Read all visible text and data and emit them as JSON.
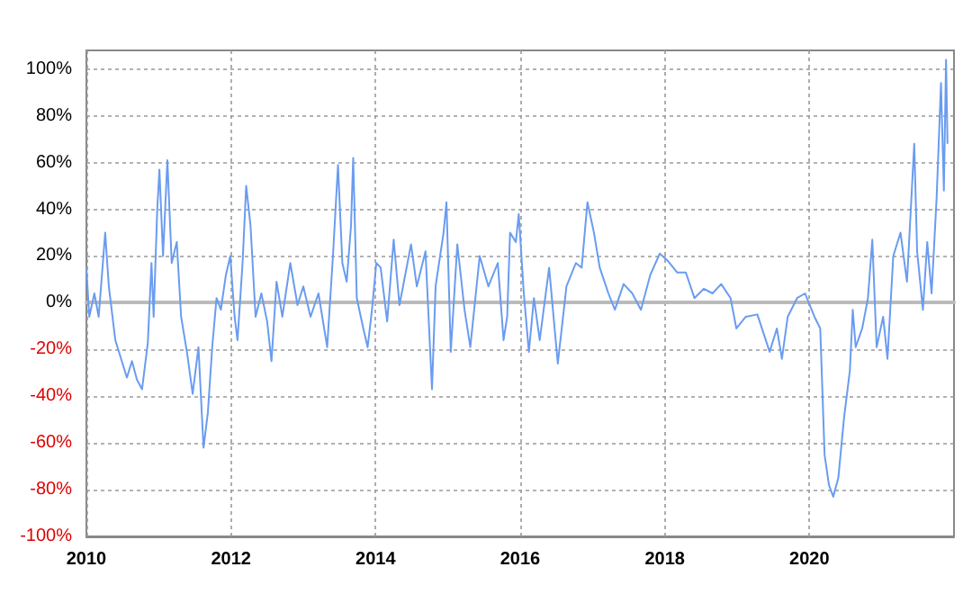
{
  "chart_data": {
    "type": "line",
    "xlim": [
      2010,
      2022
    ],
    "xticks": [
      2010,
      2012,
      2014,
      2016,
      2018,
      2020
    ],
    "ylim": [
      -100,
      108
    ],
    "yticks": [
      {
        "value": -100,
        "label": "-100%"
      },
      {
        "value": -80,
        "label": "-80%"
      },
      {
        "value": -60,
        "label": "-60%"
      },
      {
        "value": -40,
        "label": "-40%"
      },
      {
        "value": -20,
        "label": "-20%"
      },
      {
        "value": 0,
        "label": "0%"
      },
      {
        "value": 20,
        "label": "20%"
      },
      {
        "value": 40,
        "label": "40%"
      },
      {
        "value": 60,
        "label": "60%"
      },
      {
        "value": 80,
        "label": "80%"
      },
      {
        "value": 100,
        "label": "100%"
      }
    ],
    "grid": true,
    "marker": "none",
    "line_style": "solid",
    "series": [
      {
        "color": "#6a9cf0",
        "x": [
          2010,
          2010.04,
          2010.11,
          2010.17,
          2010.26,
          2010.31,
          2010.4,
          2010.48,
          2010.56,
          2010.63,
          2010.7,
          2010.77,
          2010.85,
          2010.9,
          2010.93,
          2010.98,
          2011.01,
          2011.06,
          2011.12,
          2011.18,
          2011.25,
          2011.31,
          2011.39,
          2011.47,
          2011.55,
          2011.62,
          2011.68,
          2011.74,
          2011.8,
          2011.86,
          2011.93,
          2011.99,
          2012.05,
          2012.09,
          2012.16,
          2012.21,
          2012.27,
          2012.34,
          2012.42,
          2012.5,
          2012.56,
          2012.63,
          2012.71,
          2012.82,
          2012.92,
          2013,
          2013.1,
          2013.21,
          2013.33,
          2013.41,
          2013.48,
          2013.54,
          2013.6,
          2013.66,
          2013.69,
          2013.74,
          2013.83,
          2013.89,
          2013.95,
          2014.01,
          2014.07,
          2014.16,
          2014.25,
          2014.33,
          2014.49,
          2014.57,
          2014.69,
          2014.78,
          2014.83,
          2014.94,
          2014.98,
          2015.04,
          2015.13,
          2015.23,
          2015.31,
          2015.44,
          2015.56,
          2015.69,
          2015.77,
          2015.82,
          2015.86,
          2015.94,
          2015.98,
          2016.05,
          2016.12,
          2016.19,
          2016.27,
          2016.4,
          2016.52,
          2016.64,
          2016.77,
          2016.85,
          2016.93,
          2017.02,
          2017.1,
          2017.22,
          2017.31,
          2017.43,
          2017.55,
          2017.67,
          2017.8,
          2017.93,
          2018.04,
          2018.17,
          2018.29,
          2018.41,
          2018.54,
          2018.66,
          2018.78,
          2018.91,
          2018.99,
          2019.12,
          2019.28,
          2019.45,
          2019.55,
          2019.62,
          2019.7,
          2019.83,
          2019.94,
          2020.07,
          2020.15,
          2020.21,
          2020.27,
          2020.33,
          2020.4,
          2020.48,
          2020.56,
          2020.6,
          2020.64,
          2020.73,
          2020.81,
          2020.87,
          2020.93,
          2021.02,
          2021.08,
          2021.16,
          2021.26,
          2021.35,
          2021.45,
          2021.49,
          2021.57,
          2021.63,
          2021.69,
          2021.76,
          2021.82,
          2021.86,
          2021.89,
          2021.91
        ],
        "values": [
          15,
          -6,
          4,
          -6,
          30,
          7,
          -16,
          -24,
          -32,
          -25,
          -33,
          -37,
          -17,
          17,
          -6,
          40,
          57,
          20,
          61,
          17,
          26,
          -6,
          -21,
          -39,
          -19,
          -62,
          -47,
          -19,
          2,
          -3,
          12,
          20,
          -6,
          -16,
          17,
          50,
          33,
          -6,
          4,
          -8,
          -25,
          9,
          -6,
          17,
          -1,
          7,
          -6,
          4,
          -19,
          20,
          59,
          17,
          9,
          33,
          62,
          2,
          -11,
          -19,
          -3,
          17,
          15,
          -8,
          27,
          -1,
          25,
          7,
          22,
          -37,
          7,
          30,
          43,
          -21,
          25,
          -3,
          -19,
          20,
          7,
          17,
          -16,
          -6,
          30,
          26,
          38,
          4,
          -21,
          2,
          -16,
          15,
          -26,
          7,
          17,
          15,
          43,
          30,
          15,
          4,
          -3,
          8,
          4,
          -3,
          12,
          21,
          18,
          13,
          13,
          2,
          6,
          4,
          8,
          2,
          -11,
          -6,
          -5,
          -21,
          -11,
          -24,
          -6,
          2,
          4,
          -6,
          -11,
          -65,
          -78,
          -83,
          -75,
          -49,
          -29,
          -3,
          -19,
          -11,
          2,
          27,
          -19,
          -6,
          -24,
          20,
          30,
          9,
          68,
          22,
          -3,
          26,
          4,
          45,
          94,
          48,
          104,
          68
        ]
      }
    ]
  }
}
